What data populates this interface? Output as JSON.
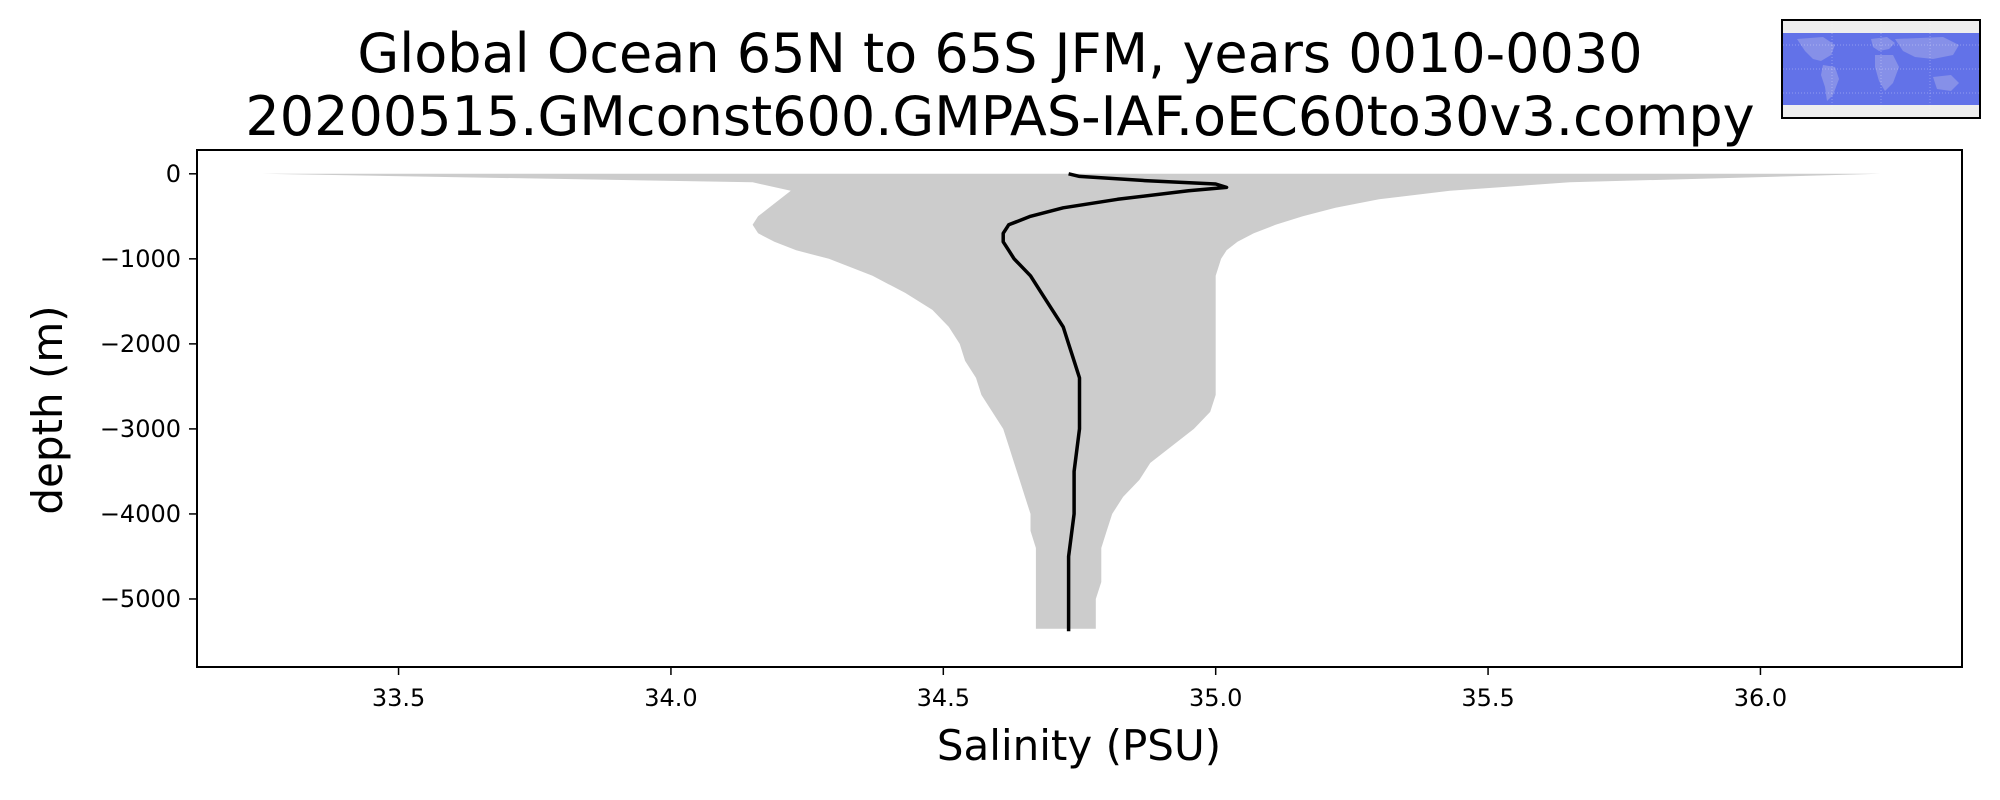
{
  "chart_data": {
    "type": "area",
    "title_line1": "Global Ocean 65N to 65S JFM, years 0010-0030",
    "title_line2": "20200515.GMconst600.GMPAS-IAF.oEC60to30v3.compy",
    "xlabel": "Salinity (PSU)",
    "ylabel": "depth (m)",
    "xlim": [
      33.13,
      36.37
    ],
    "ylim": [
      -5800,
      280
    ],
    "xticks": [
      33.5,
      34.0,
      34.5,
      35.0,
      35.5,
      36.0
    ],
    "xtick_labels": [
      "33.5",
      "34.0",
      "34.5",
      "35.0",
      "35.5",
      "36.0"
    ],
    "yticks": [
      0,
      -1000,
      -2000,
      -3000,
      -4000,
      -5000
    ],
    "ytick_labels": [
      "0",
      "−1000",
      "−2000",
      "−3000",
      "−4000",
      "−5000"
    ],
    "grid": false,
    "colors": {
      "envelope": "#cccccc",
      "mean": "#000000",
      "map_ocean": "#6272e8"
    },
    "envelope": {
      "depth": [
        0,
        -100,
        -200,
        -300,
        -400,
        -500,
        -600,
        -700,
        -800,
        -900,
        -1000,
        -1200,
        -1400,
        -1600,
        -1800,
        -2000,
        -2200,
        -2400,
        -2600,
        -2800,
        -3000,
        -3200,
        -3400,
        -3600,
        -3800,
        -4000,
        -4200,
        -4400,
        -4600,
        -4800,
        -5000,
        -5200,
        -5350
      ],
      "min": [
        33.25,
        34.15,
        34.22,
        34.2,
        34.18,
        34.16,
        34.15,
        34.16,
        34.19,
        34.23,
        34.29,
        34.37,
        34.43,
        34.48,
        34.51,
        34.53,
        34.54,
        34.56,
        34.57,
        34.59,
        34.61,
        34.62,
        34.63,
        34.64,
        34.65,
        34.66,
        34.66,
        34.67,
        34.67,
        34.67,
        34.67,
        34.67,
        34.67
      ],
      "max": [
        36.22,
        35.65,
        35.43,
        35.3,
        35.22,
        35.16,
        35.11,
        35.07,
        35.04,
        35.02,
        35.01,
        35.0,
        35.0,
        35.0,
        35.0,
        35.0,
        35.0,
        35.0,
        35.0,
        34.99,
        34.96,
        34.92,
        34.88,
        34.86,
        34.83,
        34.81,
        34.8,
        34.79,
        34.79,
        34.79,
        34.78,
        34.78,
        34.78
      ]
    },
    "mean": {
      "depth": [
        0,
        -30,
        -80,
        -120,
        -160,
        -200,
        -300,
        -400,
        -500,
        -600,
        -700,
        -800,
        -900,
        -1000,
        -1200,
        -1400,
        -1600,
        -1800,
        -2000,
        -2200,
        -2400,
        -2600,
        -2800,
        -3000,
        -3500,
        -4000,
        -4500,
        -5000,
        -5380
      ],
      "salinity": [
        34.73,
        34.75,
        34.87,
        35.0,
        35.02,
        34.95,
        34.82,
        34.72,
        34.66,
        34.62,
        34.61,
        34.61,
        34.62,
        34.63,
        34.66,
        34.68,
        34.7,
        34.72,
        34.73,
        34.74,
        34.75,
        34.75,
        34.75,
        34.75,
        34.74,
        34.74,
        34.73,
        34.73,
        34.73
      ]
    }
  }
}
